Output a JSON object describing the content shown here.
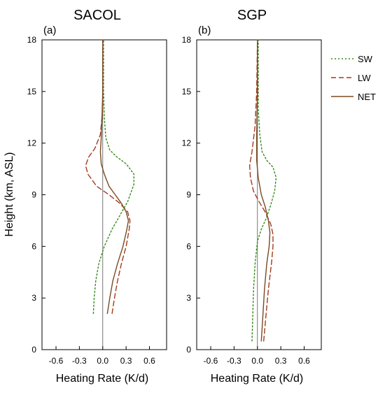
{
  "chart_data": [
    {
      "type": "line",
      "panel_label": "(a)",
      "title": "SACOL",
      "xlabel": "Heating Rate (K/d)",
      "ylabel": "Height (km, ASL)",
      "xlim": [
        -0.78,
        0.82
      ],
      "ylim": [
        0,
        18
      ],
      "xticks": [
        "-0.6",
        "-0.3",
        "0.0",
        "0.3",
        "0.6"
      ],
      "xtick_values": [
        -0.6,
        -0.3,
        0.0,
        0.3,
        0.6
      ],
      "yticks": [
        "0",
        "3",
        "6",
        "9",
        "12",
        "15",
        "18"
      ],
      "ytick_values": [
        0,
        3,
        6,
        9,
        12,
        15,
        18
      ],
      "zero_line": true,
      "series": [
        {
          "name": "SW",
          "style": "dotted",
          "color": "#3a8a1e",
          "x": [
            -0.12,
            -0.11,
            -0.09,
            -0.05,
            0.02,
            0.12,
            0.22,
            0.32,
            0.4,
            0.4,
            0.3,
            0.18,
            0.09,
            0.04,
            0.02,
            0.01,
            0.01
          ],
          "y": [
            2.1,
            3.0,
            4.0,
            5.0,
            6.0,
            7.0,
            7.8,
            8.6,
            9.6,
            10.2,
            10.8,
            11.2,
            11.6,
            12.3,
            13.5,
            15.0,
            18.0
          ]
        },
        {
          "name": "LW",
          "style": "dashed",
          "color": "#a33a1e",
          "x": [
            0.12,
            0.15,
            0.19,
            0.24,
            0.3,
            0.34,
            0.35,
            0.32,
            0.22,
            0.08,
            -0.08,
            -0.19,
            -0.22,
            -0.18,
            -0.1,
            -0.03,
            0.0,
            0.0
          ],
          "y": [
            2.1,
            3.0,
            4.0,
            5.0,
            6.0,
            7.0,
            7.5,
            8.0,
            8.5,
            9.0,
            9.5,
            10.2,
            10.7,
            11.2,
            11.7,
            12.5,
            14.0,
            18.0
          ]
        },
        {
          "name": "NET",
          "style": "solid",
          "color": "#7a4a22",
          "x": [
            0.06,
            0.09,
            0.13,
            0.19,
            0.26,
            0.31,
            0.33,
            0.3,
            0.24,
            0.16,
            0.08,
            0.02,
            -0.02,
            -0.03,
            -0.02,
            -0.01,
            0.0,
            0.0
          ],
          "y": [
            2.1,
            3.0,
            4.0,
            5.0,
            6.0,
            7.0,
            7.5,
            8.0,
            8.5,
            9.0,
            9.5,
            10.2,
            10.8,
            11.5,
            12.3,
            13.5,
            15.0,
            18.0
          ]
        }
      ]
    },
    {
      "type": "line",
      "panel_label": "(b)",
      "title": "SGP",
      "xlabel": "Heating Rate (K/d)",
      "ylabel": "",
      "xlim": [
        -0.78,
        0.82
      ],
      "ylim": [
        0,
        18
      ],
      "xticks": [
        "-0.6",
        "-0.3",
        "0.0",
        "0.3",
        "0.6"
      ],
      "xtick_values": [
        -0.6,
        -0.3,
        0.0,
        0.3,
        0.6
      ],
      "yticks": [
        "0",
        "3",
        "6",
        "9",
        "12",
        "15",
        "18"
      ],
      "ytick_values": [
        0,
        3,
        6,
        9,
        12,
        15,
        18
      ],
      "zero_line": true,
      "series": [
        {
          "name": "SW",
          "style": "dotted",
          "color": "#3a8a1e",
          "x": [
            -0.07,
            -0.06,
            -0.05,
            -0.03,
            0.0,
            0.05,
            0.11,
            0.17,
            0.22,
            0.24,
            0.2,
            0.12,
            0.06,
            0.03,
            0.01,
            0.01
          ],
          "y": [
            0.5,
            2.0,
            3.5,
            5.0,
            6.3,
            7.0,
            7.6,
            8.4,
            9.2,
            10.0,
            10.6,
            11.0,
            11.5,
            12.5,
            14.0,
            18.0
          ]
        },
        {
          "name": "LW",
          "style": "dashed",
          "color": "#a33a1e",
          "x": [
            0.08,
            0.11,
            0.14,
            0.18,
            0.2,
            0.2,
            0.17,
            0.1,
            0.02,
            -0.05,
            -0.09,
            -0.1,
            -0.07,
            -0.03,
            -0.01,
            0.0
          ],
          "y": [
            0.5,
            2.0,
            3.5,
            5.0,
            6.0,
            6.7,
            7.3,
            8.0,
            8.6,
            9.2,
            10.0,
            10.7,
            11.5,
            13.0,
            15.0,
            18.0
          ]
        },
        {
          "name": "NET",
          "style": "solid",
          "color": "#7a4a22",
          "x": [
            0.05,
            0.07,
            0.09,
            0.12,
            0.15,
            0.16,
            0.14,
            0.1,
            0.05,
            0.01,
            -0.01,
            -0.01,
            0.0,
            0.0
          ],
          "y": [
            0.5,
            2.0,
            3.5,
            5.0,
            6.0,
            6.8,
            7.5,
            8.3,
            9.0,
            10.0,
            11.0,
            12.5,
            15.0,
            18.0
          ]
        }
      ]
    }
  ],
  "legend": {
    "placement": "right",
    "items": [
      {
        "name": "SW",
        "style": "dotted",
        "color": "#3a8a1e"
      },
      {
        "name": "LW",
        "style": "dashed",
        "color": "#a33a1e"
      },
      {
        "name": "NET",
        "style": "solid",
        "color": "#7a4a22"
      }
    ]
  }
}
